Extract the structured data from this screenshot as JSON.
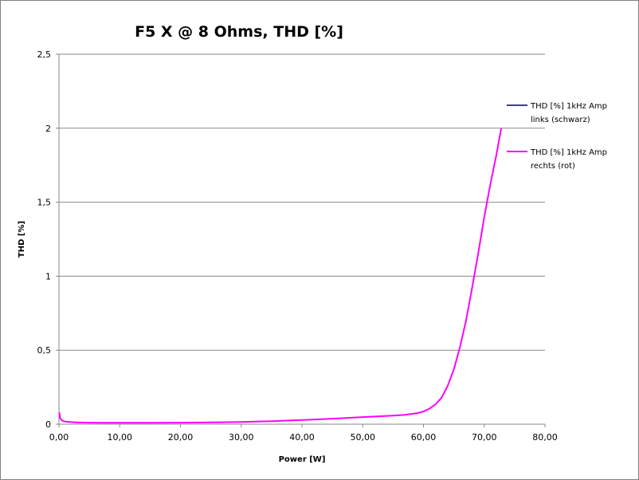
{
  "chart_data": {
    "type": "line",
    "title": "F5 X @ 8 Ohms, THD [%]",
    "xlabel": "Power [W]",
    "ylabel": "THD [%]",
    "xlim": [
      0,
      80
    ],
    "ylim": [
      0,
      2.5
    ],
    "xticks": [
      0,
      10,
      20,
      30,
      40,
      50,
      60,
      70,
      80
    ],
    "xtick_labels": [
      "0,00",
      "10,00",
      "20,00",
      "30,00",
      "40,00",
      "50,00",
      "60,00",
      "70,00",
      "80,00"
    ],
    "yticks": [
      0,
      0.5,
      1,
      1.5,
      2,
      2.5
    ],
    "ytick_labels": [
      "0",
      "0,5",
      "1",
      "1,5",
      "2",
      "2,5"
    ],
    "grid": "horizontal",
    "legend_position": "right",
    "series": [
      {
        "name_lines": [
          "THD [%] 1kHz Amp",
          "links (schwarz)"
        ],
        "color": "#404080",
        "points": []
      },
      {
        "name_lines": [
          "THD [%] 1kHz Amp",
          "rechts (rot)"
        ],
        "color": "#ff00ff",
        "points": [
          [
            0.05,
            0.08
          ],
          [
            0.2,
            0.04
          ],
          [
            0.5,
            0.025
          ],
          [
            1,
            0.018
          ],
          [
            2,
            0.014
          ],
          [
            3,
            0.012
          ],
          [
            5,
            0.01
          ],
          [
            8,
            0.009
          ],
          [
            10,
            0.009
          ],
          [
            15,
            0.009
          ],
          [
            20,
            0.01
          ],
          [
            25,
            0.012
          ],
          [
            30,
            0.015
          ],
          [
            35,
            0.02
          ],
          [
            40,
            0.028
          ],
          [
            45,
            0.037
          ],
          [
            50,
            0.048
          ],
          [
            55,
            0.058
          ],
          [
            57,
            0.063
          ],
          [
            59,
            0.075
          ],
          [
            60,
            0.085
          ],
          [
            61,
            0.105
          ],
          [
            62,
            0.135
          ],
          [
            63,
            0.18
          ],
          [
            64,
            0.26
          ],
          [
            65,
            0.37
          ],
          [
            66,
            0.52
          ],
          [
            67,
            0.7
          ],
          [
            68,
            0.92
          ],
          [
            69,
            1.15
          ],
          [
            70,
            1.4
          ],
          [
            71,
            1.62
          ],
          [
            72,
            1.82
          ],
          [
            72.8,
            2.0
          ]
        ]
      }
    ]
  }
}
